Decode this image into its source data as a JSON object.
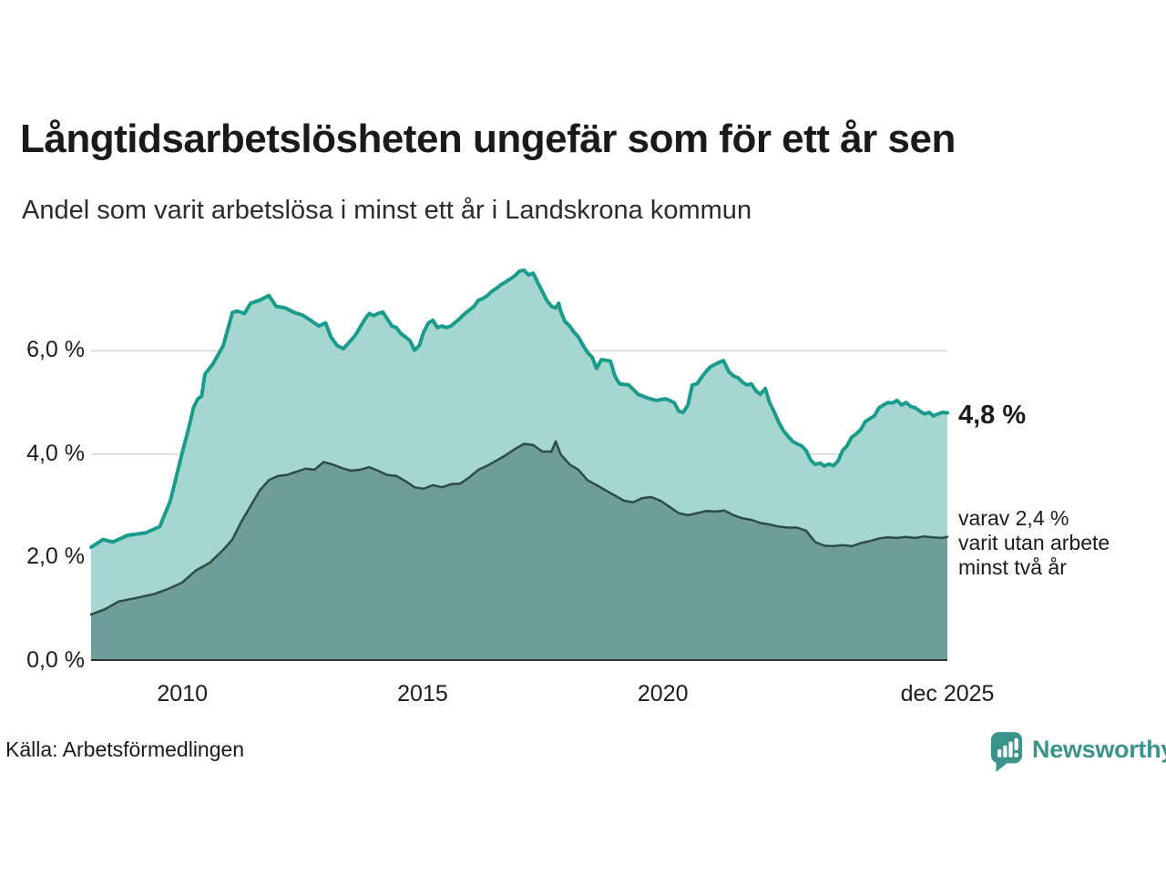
{
  "header": {
    "title": "Långtidsarbetslösheten ungefär som för ett år sen",
    "subtitle": "Andel som varit arbetslösa i minst ett år i Landskrona kommun"
  },
  "footer": {
    "source": "Källa: Arbetsförmedlingen",
    "brand": "Newsworthy",
    "brand_icon": "newsworthy-speech-bubble-bar-chart-icon",
    "brand_color": "#3b948c"
  },
  "colors": {
    "background": "#ffffff",
    "text": "#1a1a1a",
    "gridline": "#d8d8d8",
    "axis": "#333333",
    "accent_teal": "#1a9c8c"
  },
  "chart_data": {
    "type": "area",
    "title": "Långtidsarbetslösheten ungefär som för ett år sen",
    "subtitle": "Andel som varit arbetslösa i minst ett år i Landskrona kommun",
    "unit": "%",
    "grid": "horizontal only",
    "x_axis": {
      "min": 2008.1,
      "max": 2025.92,
      "ticks": [
        {
          "x": 2010,
          "label": "2010"
        },
        {
          "x": 2015,
          "label": "2015"
        },
        {
          "x": 2020,
          "label": "2020"
        },
        {
          "x": 2025.92,
          "label": "dec 2025"
        }
      ]
    },
    "y_axis": {
      "min": 0,
      "max": 7.89,
      "gridlines": [
        2,
        4,
        6
      ],
      "tick_labels": [
        {
          "value": 0,
          "label": "0,0 %"
        },
        {
          "value": 2,
          "label": "2,0 %"
        },
        {
          "value": 4,
          "label": "4,0 %"
        },
        {
          "value": 6,
          "label": "6,0 %"
        }
      ]
    },
    "annotations": {
      "end_value_label": "4,8 %",
      "sub_label_lines": [
        "varav 2,4 %",
        "varit utan arbete",
        "minst två år"
      ]
    },
    "end_values": {
      "unemployed_min_one_year_pct": 4.8,
      "unemployed_min_two_years_pct": 2.4
    },
    "series": [
      {
        "name": "Arbetslösa minst ett år",
        "line_color": "#1a9c8c",
        "fill_color": "#a5d6cf",
        "line_width": 4,
        "points": [
          [
            2008.1,
            2.2
          ],
          [
            2008.35,
            2.35
          ],
          [
            2008.55,
            2.3
          ],
          [
            2008.86,
            2.43
          ],
          [
            2009.24,
            2.48
          ],
          [
            2009.53,
            2.6
          ],
          [
            2009.75,
            3.1
          ],
          [
            2010.0,
            4.04
          ],
          [
            2010.13,
            4.5
          ],
          [
            2010.23,
            4.9
          ],
          [
            2010.32,
            5.07
          ],
          [
            2010.4,
            5.12
          ],
          [
            2010.47,
            5.55
          ],
          [
            2010.63,
            5.74
          ],
          [
            2010.85,
            6.1
          ],
          [
            2011.04,
            6.74
          ],
          [
            2011.14,
            6.77
          ],
          [
            2011.29,
            6.72
          ],
          [
            2011.42,
            6.92
          ],
          [
            2011.61,
            6.98
          ],
          [
            2011.8,
            7.07
          ],
          [
            2011.95,
            6.86
          ],
          [
            2012.14,
            6.83
          ],
          [
            2012.33,
            6.74
          ],
          [
            2012.5,
            6.69
          ],
          [
            2012.65,
            6.6
          ],
          [
            2012.84,
            6.48
          ],
          [
            2012.98,
            6.54
          ],
          [
            2013.09,
            6.27
          ],
          [
            2013.22,
            6.1
          ],
          [
            2013.35,
            6.04
          ],
          [
            2013.6,
            6.3
          ],
          [
            2013.79,
            6.6
          ],
          [
            2013.89,
            6.72
          ],
          [
            2013.98,
            6.68
          ],
          [
            2014.07,
            6.72
          ],
          [
            2014.17,
            6.75
          ],
          [
            2014.36,
            6.48
          ],
          [
            2014.45,
            6.45
          ],
          [
            2014.55,
            6.33
          ],
          [
            2014.64,
            6.27
          ],
          [
            2014.74,
            6.19
          ],
          [
            2014.83,
            6.01
          ],
          [
            2014.93,
            6.1
          ],
          [
            2015.02,
            6.36
          ],
          [
            2015.12,
            6.54
          ],
          [
            2015.21,
            6.59
          ],
          [
            2015.31,
            6.45
          ],
          [
            2015.4,
            6.48
          ],
          [
            2015.5,
            6.45
          ],
          [
            2015.59,
            6.48
          ],
          [
            2015.78,
            6.63
          ],
          [
            2015.88,
            6.72
          ],
          [
            2016.07,
            6.86
          ],
          [
            2016.16,
            6.98
          ],
          [
            2016.25,
            7.01
          ],
          [
            2016.35,
            7.07
          ],
          [
            2016.44,
            7.15
          ],
          [
            2016.54,
            7.21
          ],
          [
            2016.63,
            7.28
          ],
          [
            2016.73,
            7.33
          ],
          [
            2016.82,
            7.39
          ],
          [
            2016.92,
            7.45
          ],
          [
            2017.01,
            7.54
          ],
          [
            2017.11,
            7.56
          ],
          [
            2017.2,
            7.47
          ],
          [
            2017.3,
            7.5
          ],
          [
            2017.39,
            7.33
          ],
          [
            2017.49,
            7.15
          ],
          [
            2017.58,
            6.98
          ],
          [
            2017.68,
            6.86
          ],
          [
            2017.77,
            6.83
          ],
          [
            2017.83,
            6.92
          ],
          [
            2017.87,
            6.77
          ],
          [
            2017.96,
            6.57
          ],
          [
            2018.06,
            6.48
          ],
          [
            2018.15,
            6.36
          ],
          [
            2018.24,
            6.27
          ],
          [
            2018.34,
            6.1
          ],
          [
            2018.43,
            5.97
          ],
          [
            2018.53,
            5.87
          ],
          [
            2018.62,
            5.66
          ],
          [
            2018.72,
            5.83
          ],
          [
            2018.91,
            5.8
          ],
          [
            2019.0,
            5.51
          ],
          [
            2019.1,
            5.36
          ],
          [
            2019.29,
            5.34
          ],
          [
            2019.48,
            5.16
          ],
          [
            2019.67,
            5.09
          ],
          [
            2019.86,
            5.04
          ],
          [
            2020.05,
            5.07
          ],
          [
            2020.14,
            5.04
          ],
          [
            2020.24,
            4.99
          ],
          [
            2020.33,
            4.83
          ],
          [
            2020.42,
            4.81
          ],
          [
            2020.52,
            4.95
          ],
          [
            2020.61,
            5.34
          ],
          [
            2020.71,
            5.36
          ],
          [
            2020.8,
            5.48
          ],
          [
            2020.9,
            5.6
          ],
          [
            2020.99,
            5.69
          ],
          [
            2021.09,
            5.74
          ],
          [
            2021.18,
            5.78
          ],
          [
            2021.26,
            5.81
          ],
          [
            2021.37,
            5.6
          ],
          [
            2021.47,
            5.51
          ],
          [
            2021.56,
            5.48
          ],
          [
            2021.66,
            5.39
          ],
          [
            2021.75,
            5.34
          ],
          [
            2021.84,
            5.36
          ],
          [
            2021.94,
            5.22
          ],
          [
            2022.03,
            5.16
          ],
          [
            2022.13,
            5.27
          ],
          [
            2022.22,
            5.0
          ],
          [
            2022.32,
            4.81
          ],
          [
            2022.41,
            4.62
          ],
          [
            2022.51,
            4.45
          ],
          [
            2022.6,
            4.35
          ],
          [
            2022.7,
            4.25
          ],
          [
            2022.79,
            4.2
          ],
          [
            2022.89,
            4.16
          ],
          [
            2022.98,
            4.07
          ],
          [
            2023.08,
            3.88
          ],
          [
            2023.17,
            3.8
          ],
          [
            2023.27,
            3.83
          ],
          [
            2023.36,
            3.77
          ],
          [
            2023.45,
            3.81
          ],
          [
            2023.55,
            3.78
          ],
          [
            2023.64,
            3.86
          ],
          [
            2023.74,
            4.07
          ],
          [
            2023.83,
            4.16
          ],
          [
            2023.93,
            4.33
          ],
          [
            2024.02,
            4.39
          ],
          [
            2024.12,
            4.48
          ],
          [
            2024.21,
            4.63
          ],
          [
            2024.31,
            4.69
          ],
          [
            2024.4,
            4.74
          ],
          [
            2024.5,
            4.9
          ],
          [
            2024.59,
            4.95
          ],
          [
            2024.68,
            5.0
          ],
          [
            2024.78,
            4.99
          ],
          [
            2024.87,
            5.04
          ],
          [
            2024.97,
            4.95
          ],
          [
            2025.06,
            5.0
          ],
          [
            2025.16,
            4.92
          ],
          [
            2025.25,
            4.9
          ],
          [
            2025.35,
            4.83
          ],
          [
            2025.44,
            4.78
          ],
          [
            2025.54,
            4.81
          ],
          [
            2025.63,
            4.74
          ],
          [
            2025.73,
            4.78
          ],
          [
            2025.82,
            4.81
          ],
          [
            2025.92,
            4.8
          ]
        ]
      },
      {
        "name": "Varav utan arbete minst två år",
        "line_color": "#2d4b47",
        "fill_color": "#6f9e98",
        "line_width": 2.5,
        "points": [
          [
            2008.1,
            0.9
          ],
          [
            2008.39,
            1.0
          ],
          [
            2008.67,
            1.15
          ],
          [
            2009.05,
            1.22
          ],
          [
            2009.43,
            1.3
          ],
          [
            2009.72,
            1.4
          ],
          [
            2010.0,
            1.52
          ],
          [
            2010.28,
            1.75
          ],
          [
            2010.57,
            1.9
          ],
          [
            2010.85,
            2.15
          ],
          [
            2011.04,
            2.35
          ],
          [
            2011.23,
            2.7
          ],
          [
            2011.42,
            3.0
          ],
          [
            2011.61,
            3.3
          ],
          [
            2011.8,
            3.5
          ],
          [
            2011.99,
            3.58
          ],
          [
            2012.18,
            3.6
          ],
          [
            2012.37,
            3.66
          ],
          [
            2012.56,
            3.72
          ],
          [
            2012.75,
            3.7
          ],
          [
            2012.94,
            3.85
          ],
          [
            2013.13,
            3.8
          ],
          [
            2013.32,
            3.73
          ],
          [
            2013.51,
            3.68
          ],
          [
            2013.7,
            3.7
          ],
          [
            2013.89,
            3.75
          ],
          [
            2014.07,
            3.68
          ],
          [
            2014.26,
            3.6
          ],
          [
            2014.45,
            3.58
          ],
          [
            2014.64,
            3.48
          ],
          [
            2014.83,
            3.36
          ],
          [
            2015.02,
            3.33
          ],
          [
            2015.21,
            3.4
          ],
          [
            2015.4,
            3.36
          ],
          [
            2015.59,
            3.42
          ],
          [
            2015.78,
            3.43
          ],
          [
            2015.97,
            3.55
          ],
          [
            2016.16,
            3.7
          ],
          [
            2016.35,
            3.78
          ],
          [
            2016.54,
            3.88
          ],
          [
            2016.73,
            3.98
          ],
          [
            2016.92,
            4.1
          ],
          [
            2017.11,
            4.2
          ],
          [
            2017.3,
            4.18
          ],
          [
            2017.49,
            4.05
          ],
          [
            2017.68,
            4.05
          ],
          [
            2017.77,
            4.25
          ],
          [
            2017.87,
            4.0
          ],
          [
            2018.06,
            3.8
          ],
          [
            2018.24,
            3.7
          ],
          [
            2018.43,
            3.5
          ],
          [
            2018.62,
            3.4
          ],
          [
            2018.81,
            3.3
          ],
          [
            2019.0,
            3.2
          ],
          [
            2019.19,
            3.1
          ],
          [
            2019.38,
            3.07
          ],
          [
            2019.57,
            3.15
          ],
          [
            2019.76,
            3.17
          ],
          [
            2019.95,
            3.1
          ],
          [
            2020.14,
            2.98
          ],
          [
            2020.33,
            2.86
          ],
          [
            2020.52,
            2.82
          ],
          [
            2020.71,
            2.86
          ],
          [
            2020.9,
            2.9
          ],
          [
            2021.09,
            2.89
          ],
          [
            2021.28,
            2.91
          ],
          [
            2021.47,
            2.82
          ],
          [
            2021.66,
            2.76
          ],
          [
            2021.84,
            2.73
          ],
          [
            2022.03,
            2.67
          ],
          [
            2022.22,
            2.64
          ],
          [
            2022.41,
            2.6
          ],
          [
            2022.6,
            2.58
          ],
          [
            2022.79,
            2.58
          ],
          [
            2022.98,
            2.52
          ],
          [
            2023.17,
            2.3
          ],
          [
            2023.36,
            2.23
          ],
          [
            2023.55,
            2.22
          ],
          [
            2023.74,
            2.24
          ],
          [
            2023.93,
            2.22
          ],
          [
            2024.12,
            2.28
          ],
          [
            2024.31,
            2.32
          ],
          [
            2024.5,
            2.37
          ],
          [
            2024.68,
            2.39
          ],
          [
            2024.87,
            2.38
          ],
          [
            2025.06,
            2.4
          ],
          [
            2025.25,
            2.38
          ],
          [
            2025.44,
            2.41
          ],
          [
            2025.63,
            2.39
          ],
          [
            2025.82,
            2.38
          ],
          [
            2025.92,
            2.4
          ]
        ]
      }
    ]
  }
}
